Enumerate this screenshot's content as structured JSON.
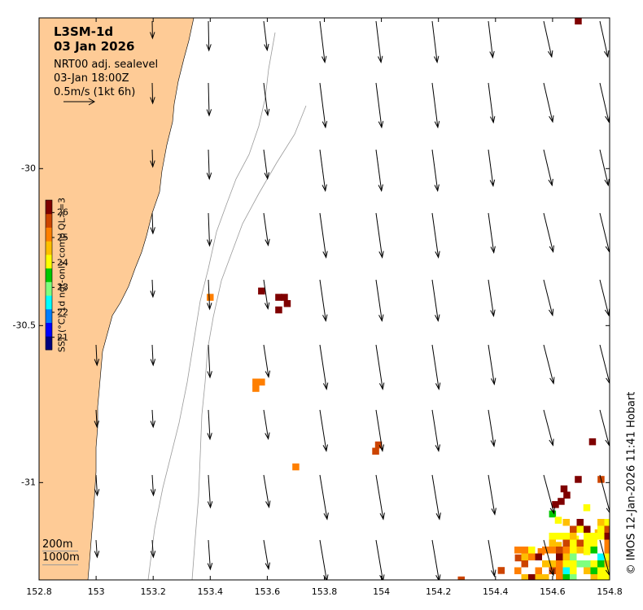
{
  "title": {
    "product": "L3SM-1d",
    "date": "03 Jan 2026",
    "current_source": "NRT00 adj. sealevel",
    "current_time": "03-Jan 18:00Z",
    "scale_label": "0.5m/s (1kt 6h)"
  },
  "depth_legend": {
    "shallow": "200m",
    "deep": "1000m"
  },
  "credit": "© IMOS 12-Jan-2026 11:41 Hobart",
  "colorbar": {
    "label": "SST (°C) 1d ngt-only comp QL>=3",
    "ticks": [
      "21",
      "22",
      "23",
      "24",
      "25",
      "26"
    ],
    "range": [
      20.5,
      26.5
    ],
    "colors": [
      "#00007f",
      "#0000ff",
      "#007fff",
      "#00ffff",
      "#7fff7f",
      "#00c800",
      "#ffff00",
      "#ffbf00",
      "#ff7f00",
      "#cc4400",
      "#7f0000"
    ]
  },
  "axes": {
    "x_ticks": [
      "152.8",
      "153",
      "153.2",
      "153.4",
      "153.6",
      "153.8",
      "154",
      "154.2",
      "154.4",
      "154.6",
      "154.8"
    ],
    "y_ticks": [
      "-30",
      "-30.5",
      "-31"
    ],
    "lon_range": [
      152.8,
      154.8
    ],
    "lat_range": [
      -31.31,
      -29.52
    ]
  },
  "colors": {
    "land": "#fecb96",
    "isobath": "#9a9a9a",
    "arrow": "#000000"
  },
  "chart_data": {
    "type": "map",
    "title": "L3SM-1d 03 Jan 2026",
    "xlabel": "",
    "ylabel": "",
    "xlim": [
      152.8,
      154.8
    ],
    "ylim": [
      -31.31,
      -29.52
    ],
    "sst_pixels": [
      {
        "lon": 153.4,
        "lat": -30.41,
        "sst": 25.2
      },
      {
        "lon": 153.58,
        "lat": -30.39,
        "sst": 26.0
      },
      {
        "lon": 153.64,
        "lat": -30.41,
        "sst": 26.0
      },
      {
        "lon": 153.66,
        "lat": -30.41,
        "sst": 26.3
      },
      {
        "lon": 153.67,
        "lat": -30.43,
        "sst": 26.5
      },
      {
        "lon": 153.64,
        "lat": -30.45,
        "sst": 26.4
      },
      {
        "lon": 153.56,
        "lat": -30.68,
        "sst": 25.2
      },
      {
        "lon": 153.58,
        "lat": -30.68,
        "sst": 25.2
      },
      {
        "lon": 153.56,
        "lat": -30.7,
        "sst": 25.2
      },
      {
        "lon": 153.99,
        "lat": -30.88,
        "sst": 25.6
      },
      {
        "lon": 153.98,
        "lat": -30.9,
        "sst": 25.6
      },
      {
        "lon": 153.7,
        "lat": -30.95,
        "sst": 25.2
      },
      {
        "lon": 154.74,
        "lat": -30.87,
        "sst": 26.5
      },
      {
        "lon": 154.69,
        "lat": -29.53,
        "sst": 26.5
      },
      {
        "lon": 154.69,
        "lat": -30.99,
        "sst": 26.5
      },
      {
        "lon": 154.77,
        "lat": -30.99,
        "sst": 25.8
      },
      {
        "lon": 154.64,
        "lat": -31.02,
        "sst": 26.4
      },
      {
        "lon": 154.65,
        "lat": -31.04,
        "sst": 26.3
      },
      {
        "lon": 154.63,
        "lat": -31.06,
        "sst": 26.2
      },
      {
        "lon": 154.61,
        "lat": -31.07,
        "sst": 26.1
      },
      {
        "lon": 154.72,
        "lat": -31.08,
        "sst": 23.8
      },
      {
        "lon": 154.6,
        "lat": -31.1,
        "sst": 23.5
      },
      {
        "lon": 154.62,
        "lat": -31.12,
        "sst": 24.1
      },
      {
        "lon": 154.28,
        "lat": -31.31,
        "sst": 25.9
      },
      {
        "lon": 154.42,
        "lat": -31.28,
        "sst": 25.8
      },
      {
        "lon": 154.48,
        "lat": -31.24,
        "sst": 25.6
      },
      {
        "lon": 154.56,
        "lat": -31.22,
        "sst": 25.4
      },
      {
        "lon": 154.62,
        "lat": -31.2,
        "sst": 24.6
      },
      {
        "lon": 154.68,
        "lat": -31.18,
        "sst": 24.3
      },
      {
        "lon": 154.72,
        "lat": -31.22,
        "sst": 24.2
      },
      {
        "lon": 154.76,
        "lat": -31.16,
        "sst": 24.8
      }
    ],
    "currents": {
      "note": "surface current vectors (u east, v north, m/s)",
      "scale_ms": 0.5
    }
  }
}
